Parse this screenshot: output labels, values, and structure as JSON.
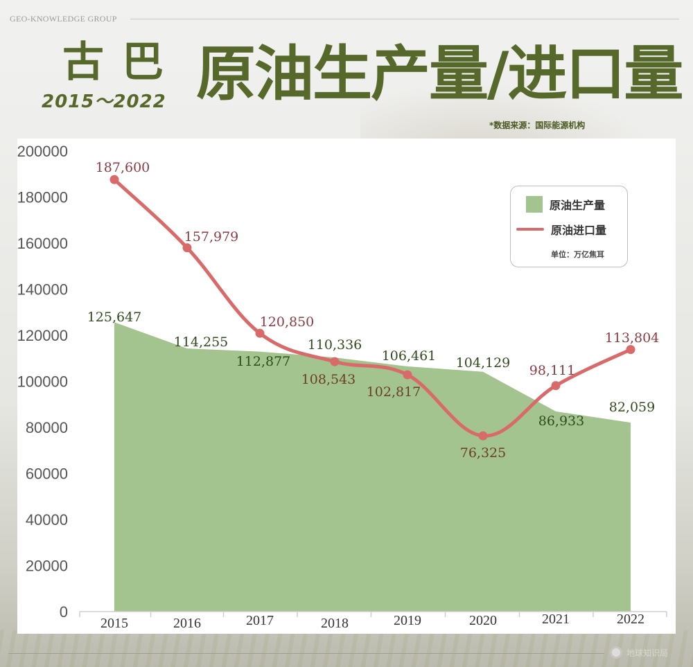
{
  "header": {
    "brand": "GEO-KNOWLEDGE GROUP",
    "country": "古巴",
    "years": "2015～2022",
    "title": "原油生产量/进口量",
    "source": "*数据来源：国际能源机构"
  },
  "legend": {
    "production_label": "原油生产量",
    "import_label": "原油进口量",
    "unit": "单位：万亿焦耳"
  },
  "footer": {
    "logo_text": "地球知识局"
  },
  "colors": {
    "title_green": "#56692b",
    "production_fill": "#a3c48e",
    "import_line": "#d96a6a",
    "production_label": "#2f4a1c",
    "import_label": "#8a3a40"
  },
  "chart_data": {
    "type": "area+line",
    "title": "古巴 2015～2022 原油生产量/进口量",
    "xlabel": "",
    "ylabel": "",
    "unit": "万亿焦耳",
    "categories": [
      "2015",
      "2016",
      "2017",
      "2018",
      "2019",
      "2020",
      "2021",
      "2022"
    ],
    "yticks": [
      "0",
      "20000",
      "40000",
      "60000",
      "80000",
      "100000",
      "120000",
      "140000",
      "160000",
      "180000",
      "200000"
    ],
    "ylim": [
      0,
      200000
    ],
    "grid": false,
    "legend_position": "top-right",
    "series": [
      {
        "name": "原油生产量",
        "type": "area",
        "values": [
          125647,
          114255,
          112877,
          110336,
          106461,
          104129,
          86933,
          82059
        ],
        "labels": [
          "125,647",
          "114,255",
          "112,877",
          "110,336",
          "106,461",
          "104,129",
          "86,933",
          "82,059"
        ]
      },
      {
        "name": "原油进口量",
        "type": "line",
        "smooth": true,
        "values": [
          187600,
          157979,
          120850,
          108543,
          102817,
          76325,
          98111,
          113804
        ],
        "labels": [
          "187,600",
          "157,979",
          "120,850",
          "108,543",
          "102,817",
          "76,325",
          "98,111",
          "113,804"
        ]
      }
    ],
    "source": "国际能源机构"
  }
}
